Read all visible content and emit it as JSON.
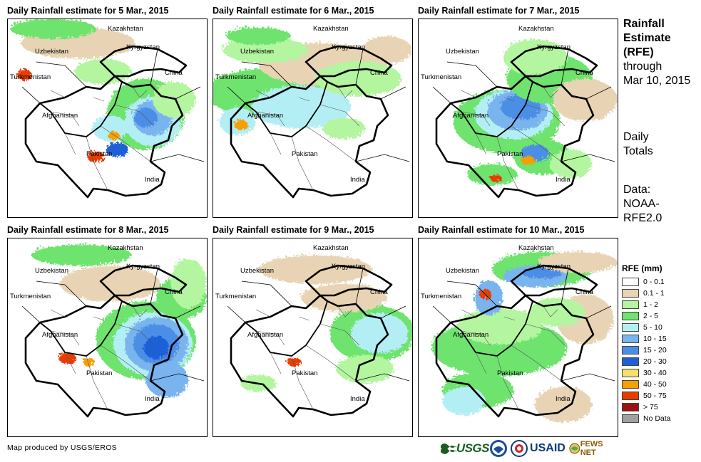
{
  "panels": [
    {
      "id": "p1",
      "title": "Daily Rainfall estimate for 5 Mar., 2015"
    },
    {
      "id": "p2",
      "title": "Daily Rainfall estimate for 6 Mar., 2015"
    },
    {
      "id": "p3",
      "title": "Daily Rainfall estimate for 7 Mar., 2015"
    },
    {
      "id": "p4",
      "title": "Daily Rainfall estimate for 8 Mar., 2015"
    },
    {
      "id": "p5",
      "title": "Daily Rainfall estimate for 9 Mar., 2015"
    },
    {
      "id": "p6",
      "title": "Daily Rainfall estimate for 10 Mar., 2015"
    }
  ],
  "country_labels": {
    "kazakhstan": "Kazakhstan",
    "kyrgyzstan": "Kyrgyzstan",
    "uzbekistan": "Uzbekistan",
    "turkmenistan": "Turkmenistan",
    "china": "China",
    "afghanistan": "Afghanistan",
    "pakistan": "Pakistan",
    "india": "India"
  },
  "side": {
    "title_line1": "Rainfall",
    "title_line2": "Estimate",
    "title_line3": "(RFE)",
    "title_line4": "through",
    "title_line5": "Mar 10, 2015",
    "daily_line1": "Daily",
    "daily_line2": "Totals",
    "data_line1": "Data:",
    "data_line2": "NOAA-",
    "data_line3": "RFE2.0"
  },
  "legend": {
    "title": "RFE (mm)",
    "items": [
      {
        "label": "0 - 0.1",
        "color": "#ffffff"
      },
      {
        "label": "0.1 - 1",
        "color": "#e8d4b4"
      },
      {
        "label": "1 - 2",
        "color": "#b4f5a0"
      },
      {
        "label": "2 - 5",
        "color": "#6ee36e"
      },
      {
        "label": "5 - 10",
        "color": "#b4eef5"
      },
      {
        "label": "10 - 15",
        "color": "#7ab4ee"
      },
      {
        "label": "15 - 20",
        "color": "#4b8ee6"
      },
      {
        "label": "20 - 30",
        "color": "#1f5fd6"
      },
      {
        "label": "30 - 40",
        "color": "#f5e06e"
      },
      {
        "label": "40 - 50",
        "color": "#f5a000"
      },
      {
        "label": "50 - 75",
        "color": "#e63c00"
      },
      {
        "label": "> 75",
        "color": "#a01010"
      },
      {
        "label": "No Data",
        "color": "#a0a0a0"
      }
    ]
  },
  "credit": "Map produced by USGS/EROS",
  "logos": {
    "usgs": "USGS",
    "usaid": "USAID",
    "fewsnet": "FEWS NET"
  }
}
